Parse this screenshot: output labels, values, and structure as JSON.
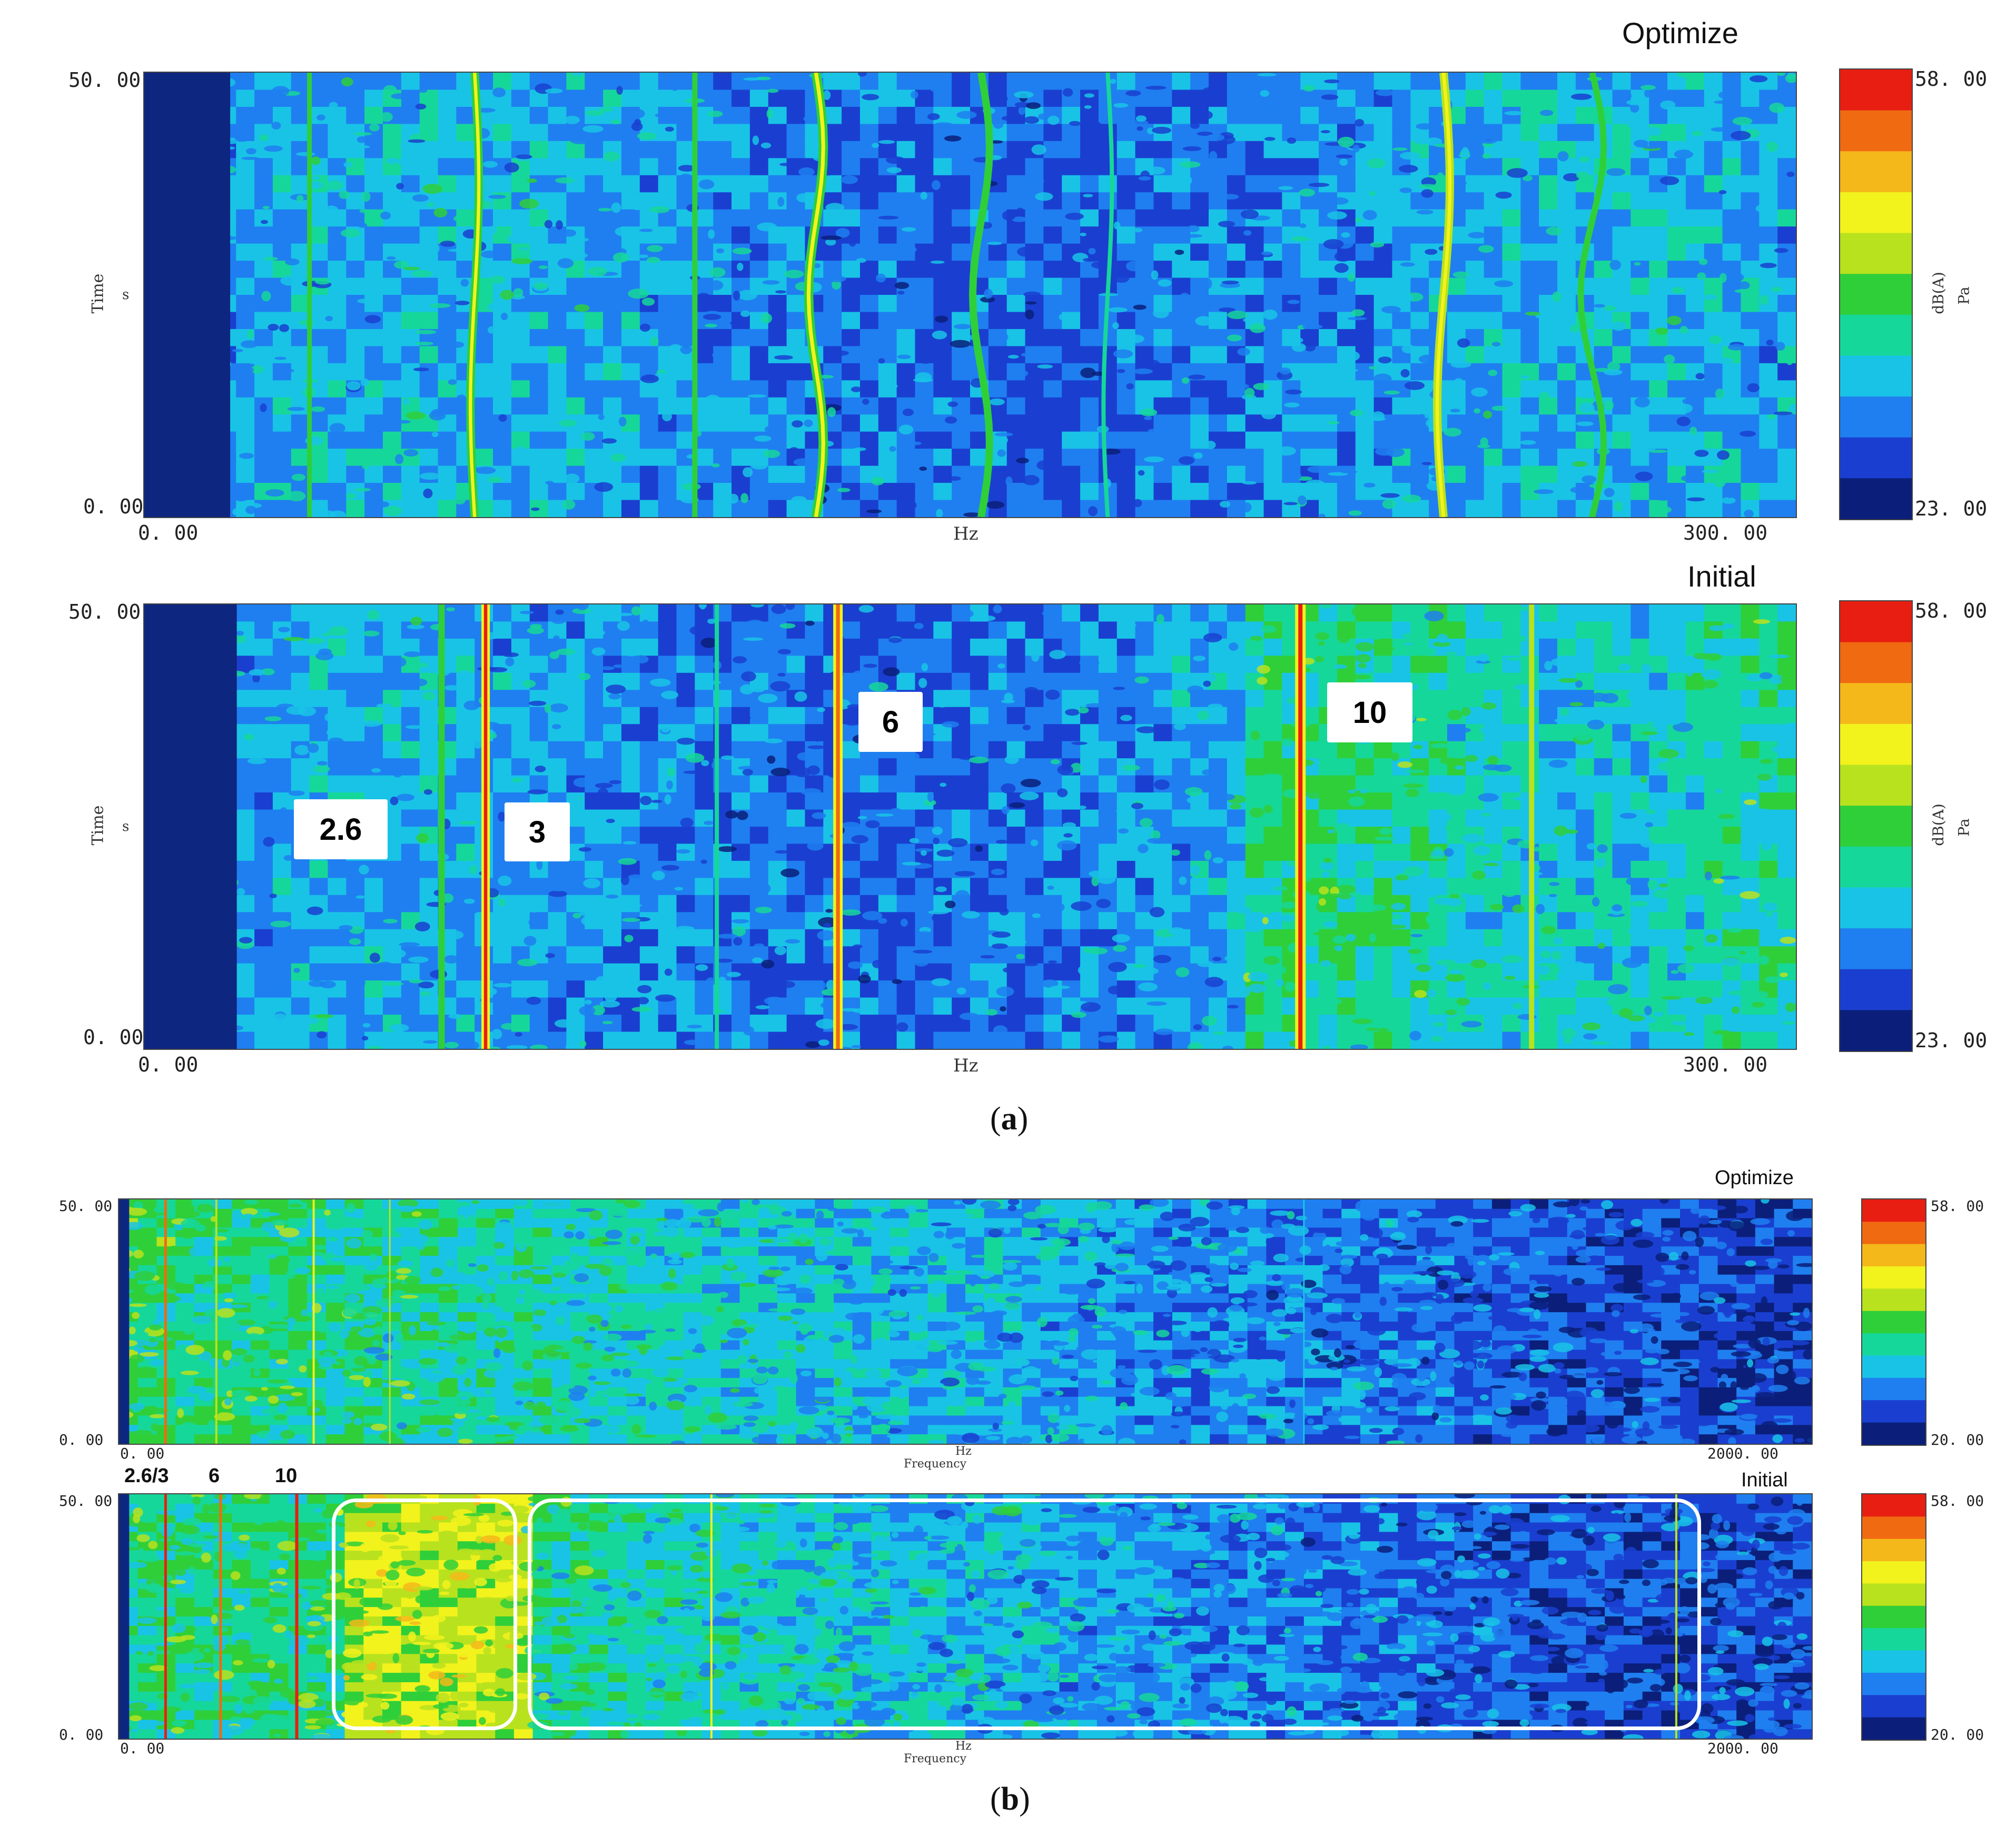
{
  "chart_data": [
    {
      "type": "heatmap",
      "panel": "a",
      "title": "Optimize",
      "xlabel": "Hz",
      "ylabel": "Time",
      "ylabel_unit": "s",
      "xlim": [
        0,
        300
      ],
      "ylim": [
        0,
        50
      ],
      "x_tick_labels": [
        "0. 00",
        "300. 00"
      ],
      "y_tick_labels": [
        "50. 00",
        "0. 00"
      ],
      "colorbar": {
        "label": "dB(A)",
        "unit": "Pa",
        "min": 23,
        "max": 58,
        "tick_labels": [
          "58. 00",
          "23. 00"
        ]
      },
      "tonal_lines_hz": [
        30,
        60,
        100,
        122,
        150,
        175,
        216,
        240,
        261,
        275
      ],
      "annotations": []
    },
    {
      "type": "heatmap",
      "panel": "a",
      "title": "Initial",
      "xlabel": "Hz",
      "ylabel": "Time",
      "ylabel_unit": "s",
      "xlim": [
        0,
        300
      ],
      "ylim": [
        0,
        50
      ],
      "x_tick_labels": [
        "0. 00",
        "300. 00"
      ],
      "y_tick_labels": [
        "50. 00",
        "0. 00"
      ],
      "colorbar": {
        "label": "dB(A)",
        "unit": "Pa",
        "min": 23,
        "max": 58,
        "tick_labels": [
          "58. 00",
          "23. 00"
        ]
      },
      "tonal_lines_hz": [
        54,
        62,
        104,
        126,
        210,
        250
      ],
      "annotations": [
        "2.6",
        "3",
        "6",
        "10"
      ]
    },
    {
      "type": "heatmap",
      "panel": "b",
      "title": "Optimize",
      "xlabel": "Hz",
      "xlabel2": "Frequency",
      "xlim": [
        0,
        2000
      ],
      "ylim": [
        0,
        50
      ],
      "x_tick_labels": [
        "0. 00",
        "2000. 00"
      ],
      "y_tick_labels": [
        "50. 00",
        "0. 00"
      ],
      "colorbar": {
        "min": 20,
        "max": 58,
        "tick_labels": [
          "58. 00",
          "20. 00"
        ]
      },
      "annotations": []
    },
    {
      "type": "heatmap",
      "panel": "b",
      "title": "Initial",
      "xlabel": "Hz",
      "xlabel2": "Frequency",
      "xlim": [
        0,
        2000
      ],
      "ylim": [
        0,
        50
      ],
      "x_tick_labels": [
        "0. 00",
        "2000. 00"
      ],
      "y_tick_labels": [
        "50. 00",
        "0. 00"
      ],
      "colorbar": {
        "min": 20,
        "max": 58,
        "tick_labels": [
          "58. 00",
          "20. 00"
        ]
      },
      "annotations": [
        "2.6/3",
        "6",
        "10"
      ]
    }
  ],
  "captions": {
    "a_letter": "a",
    "b_letter": "b"
  },
  "palette": [
    "#0b1f7a",
    "#1a3fd0",
    "#1f7ff0",
    "#19c3e6",
    "#16d79a",
    "#2fcf3a",
    "#b8e21e",
    "#f2f21c",
    "#f5b81a",
    "#f06a12",
    "#e81e12"
  ]
}
